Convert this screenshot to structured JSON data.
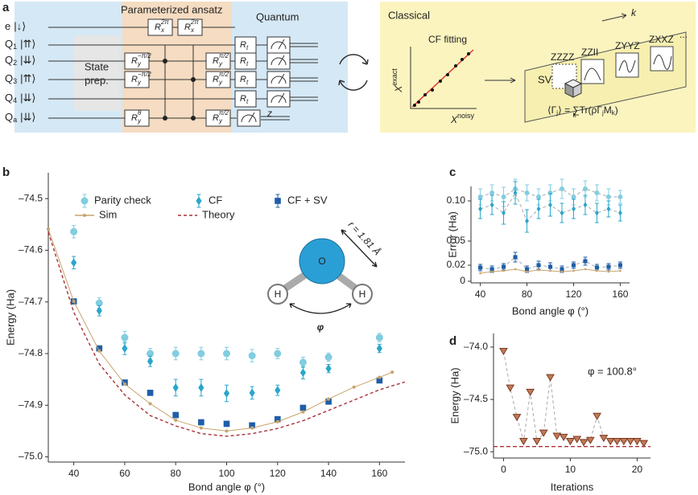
{
  "panel_labels": [
    "a",
    "b",
    "c",
    "d"
  ],
  "diagram": {
    "ansatz_title": "Parameterized ansatz",
    "quantum_title": "Quantum",
    "classical_title": "Classical",
    "state_prep": [
      "State",
      "prep."
    ],
    "qubits": [
      {
        "label": "e",
        "state": "|↓⟩"
      },
      {
        "label": "Q",
        "index": "1",
        "state": "|⇈⟩"
      },
      {
        "label": "Q",
        "index": "2",
        "state": "|⇊⟩"
      },
      {
        "label": "Q",
        "index": "3",
        "state": "|⇈⟩"
      },
      {
        "label": "Q",
        "index": "4",
        "state": "|⇊⟩"
      },
      {
        "label": "Q",
        "index": "a",
        "state": "|⇊⟩"
      }
    ],
    "gates": {
      "rx": {
        "base": "R",
        "sub": "x",
        "sup": "2π"
      },
      "rx2": {
        "base": "R",
        "sub": "x",
        "sup": "2π"
      },
      "ry_m": {
        "base": "R",
        "sub": "y",
        "sup": "−π/2"
      },
      "ry_p": {
        "base": "R",
        "sub": "y",
        "sup": "π/2"
      },
      "ry_theta": {
        "base": "R",
        "sub": "y",
        "sup": "θ"
      },
      "rt": {
        "base": "R",
        "sub": "t"
      }
    },
    "z": "z",
    "cf_fitting": "CF fitting",
    "x_exact": {
      "base": "X",
      "sup": "exact"
    },
    "x_noisy": {
      "base": "X",
      "sup": "noisy"
    },
    "sv": "SV",
    "k": "k",
    "strings": [
      "ZZZZ",
      "ZZII",
      "ZYYZ",
      "ZXXZ"
    ],
    "ellipsis": "...",
    "formula": {
      "lhs": "⟨Γ",
      "lhs_sub": "j",
      "lhs_end": "⟩ =",
      "sum": "∑",
      "sum_sub": "k",
      "rhs": "Tr(ρΓ",
      "rhs_sub1": "j",
      "rhs_mid": "M",
      "rhs_sub2": "k",
      "rhs_end": ")"
    }
  },
  "chart_data": [
    {
      "type": "line",
      "xlabel": "Bond angle φ (°)",
      "ylabel": "Energy (Ha)",
      "legend": "upper left",
      "xlim": [
        30,
        170
      ],
      "xticks": [
        40,
        60,
        80,
        100,
        120,
        140,
        160
      ],
      "ylim": [
        -75.01,
        -74.45
      ],
      "yticks": [
        {
          "value": -74.5,
          "label": "–74.5"
        },
        {
          "value": -74.6,
          "label": "–74.6"
        },
        {
          "value": -74.7,
          "label": "–74.7"
        },
        {
          "value": -74.8,
          "label": "–74.8"
        },
        {
          "value": -74.9,
          "label": "–74.9"
        },
        {
          "value": -75.0,
          "label": "–75.0"
        }
      ],
      "series": [
        {
          "name": "Parity check",
          "color": "#82cde0",
          "marker": "circle",
          "x": [
            40,
            50,
            60,
            70,
            80,
            90,
            100,
            110,
            120,
            130,
            140,
            160
          ],
          "values": [
            -74.564,
            -74.702,
            -74.769,
            -74.8,
            -74.8,
            -74.8,
            -74.8,
            -74.804,
            -74.8,
            -74.817,
            -74.807,
            -74.769
          ],
          "errors": [
            0.012,
            0.01,
            0.012,
            0.01,
            0.012,
            0.012,
            0.012,
            0.012,
            0.01,
            0.01,
            0.008,
            0.008
          ]
        },
        {
          "name": "CF",
          "color": "#2aa6cb",
          "marker": "diamond",
          "x": [
            40,
            50,
            60,
            70,
            80,
            90,
            100,
            110,
            120,
            130,
            140,
            160
          ],
          "values": [
            -74.624,
            -74.717,
            -74.79,
            -74.815,
            -74.866,
            -74.866,
            -74.877,
            -74.876,
            -74.871,
            -74.837,
            -74.829,
            -74.79
          ],
          "errors": [
            0.012,
            0.01,
            0.012,
            0.01,
            0.016,
            0.016,
            0.016,
            0.012,
            0.01,
            0.012,
            0.008,
            0.008
          ]
        },
        {
          "name": "CF + SV",
          "color": "#1f5ea8",
          "marker": "square",
          "x": [
            40,
            50,
            60,
            70,
            80,
            90,
            100,
            110,
            120,
            130,
            140,
            160
          ],
          "values": [
            -74.699,
            -74.79,
            -74.856,
            -74.876,
            -74.919,
            -74.933,
            -74.936,
            -74.939,
            -74.927,
            -74.905,
            -74.893,
            -74.852
          ],
          "errors": [
            0.003,
            0.003,
            0.003,
            0.003,
            0.005,
            0.004,
            0.005,
            0.004,
            0.003,
            0.003,
            0.003,
            0.003
          ]
        },
        {
          "name": "Sim",
          "color": "#c8a46c",
          "line": "solid",
          "marker": "dot",
          "x": [
            30,
            40,
            50,
            60,
            70,
            80,
            90,
            100,
            110,
            120,
            130,
            140,
            150,
            160,
            165
          ],
          "values": [
            -74.559,
            -74.699,
            -74.795,
            -74.859,
            -74.897,
            -74.929,
            -74.944,
            -74.95,
            -74.944,
            -74.932,
            -74.913,
            -74.888,
            -74.865,
            -74.846,
            -74.836
          ]
        },
        {
          "name": "Theory",
          "color": "#a8323a",
          "line": "dashed",
          "x": [
            30,
            40,
            50,
            60,
            70,
            80,
            90,
            100,
            110,
            120,
            130,
            140,
            150,
            160,
            170
          ],
          "values": [
            -74.565,
            -74.72,
            -74.82,
            -74.88,
            -74.92,
            -74.94,
            -74.955,
            -74.96,
            -74.955,
            -74.945,
            -74.93,
            -74.91,
            -74.89,
            -74.87,
            -74.855
          ]
        }
      ],
      "annotations": {
        "bond": "r = 1.81 Å",
        "O": "O",
        "H": "H",
        "angle": "φ"
      }
    },
    {
      "type": "line",
      "xlabel": "Bond angle φ (°)",
      "ylabel": "Error (Ha)",
      "xlim": [
        32,
        168
      ],
      "xticks": [
        40,
        80,
        120,
        160
      ],
      "ylim": [
        -0.002,
        0.118
      ],
      "yticks": [
        0,
        0.02,
        0.05,
        {
          "value": 0.1,
          "label": "0.10"
        }
      ],
      "series": [
        {
          "color": "#82cde0",
          "marker": "circle",
          "line": "dashed",
          "x": [
            40,
            50,
            60,
            70,
            80,
            90,
            100,
            110,
            120,
            130,
            140,
            150,
            160
          ],
          "values": [
            0.105,
            0.11,
            0.105,
            0.115,
            0.11,
            0.105,
            0.11,
            0.115,
            0.105,
            0.115,
            0.11,
            0.105,
            0.105
          ],
          "errors": [
            0.01,
            0.01,
            0.012,
            0.012,
            0.01,
            0.01,
            0.01,
            0.012,
            0.01,
            0.01,
            0.01,
            0.01,
            0.008
          ]
        },
        {
          "color": "#2aa6cb",
          "marker": "diamond",
          "line": "dashed",
          "x": [
            40,
            50,
            60,
            70,
            80,
            90,
            100,
            110,
            120,
            130,
            140,
            150,
            160
          ],
          "values": [
            0.09,
            0.095,
            0.085,
            0.11,
            0.075,
            0.09,
            0.095,
            0.085,
            0.09,
            0.095,
            0.085,
            0.09,
            0.085
          ],
          "errors": [
            0.012,
            0.012,
            0.014,
            0.014,
            0.014,
            0.012,
            0.014,
            0.012,
            0.012,
            0.012,
            0.012,
            0.01,
            0.01
          ]
        },
        {
          "color": "#1f5ea8",
          "marker": "square",
          "line": "dashed",
          "x": [
            40,
            50,
            60,
            70,
            80,
            90,
            100,
            110,
            120,
            130,
            140,
            150,
            160
          ],
          "values": [
            0.017,
            0.015,
            0.018,
            0.03,
            0.015,
            0.02,
            0.018,
            0.015,
            0.02,
            0.025,
            0.017,
            0.018,
            0.02
          ],
          "errors": [
            0.004,
            0.004,
            0.004,
            0.006,
            0.004,
            0.005,
            0.005,
            0.004,
            0.004,
            0.005,
            0.004,
            0.004,
            0.004
          ]
        },
        {
          "color": "#c8a46c",
          "marker": "dot",
          "line": "solid",
          "x": [
            40,
            50,
            60,
            70,
            80,
            90,
            100,
            110,
            120,
            130,
            140,
            150,
            160
          ],
          "values": [
            0.01,
            0.012,
            0.013,
            0.015,
            0.012,
            0.014,
            0.013,
            0.012,
            0.013,
            0.015,
            0.013,
            0.012,
            0.013
          ]
        }
      ]
    },
    {
      "type": "line",
      "xlabel": "Iterations",
      "ylabel": "Energy (Ha)",
      "xlim": [
        -1.5,
        22
      ],
      "xticks": [
        0,
        10,
        20
      ],
      "ylim": [
        -75.06,
        -73.87
      ],
      "yticks": [
        {
          "value": -74.0,
          "label": "–74.0"
        },
        {
          "value": -74.5,
          "label": "–74.5"
        },
        {
          "value": -75.0,
          "label": "–75.0"
        }
      ],
      "hline": -74.95,
      "hline_color": "#a8323a",
      "series": [
        {
          "color": "#c47a57",
          "marker": "triangle-down",
          "line": "dashed",
          "x": [
            0,
            1,
            2,
            3,
            4,
            5,
            6,
            7,
            8,
            9,
            10,
            11,
            12,
            13,
            14,
            15,
            16,
            17,
            18,
            19,
            20,
            21
          ],
          "values": [
            -74.04,
            -74.39,
            -74.67,
            -74.9,
            -74.43,
            -74.9,
            -74.82,
            -74.29,
            -74.85,
            -74.86,
            -74.9,
            -74.88,
            -74.91,
            -74.89,
            -74.66,
            -74.87,
            -74.9,
            -74.9,
            -74.9,
            -74.9,
            -74.9,
            -74.92
          ]
        }
      ],
      "annotation": "φ = 100.8°"
    }
  ]
}
